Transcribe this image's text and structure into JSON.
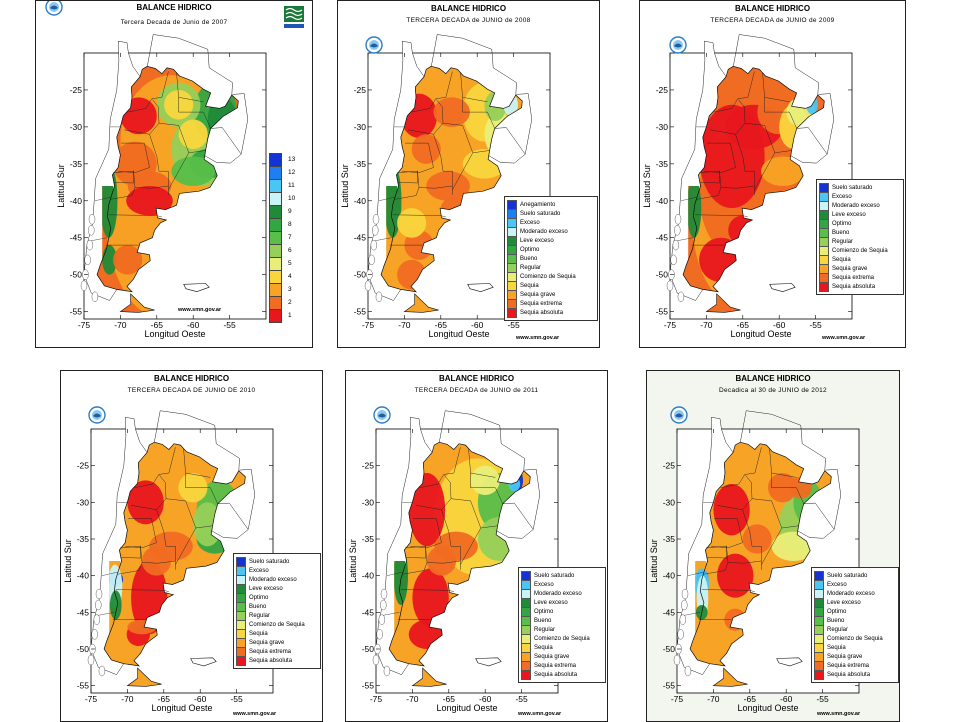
{
  "header_title": "BALANCE HIDRICO",
  "url": "www.smn.gov.ar",
  "axis": {
    "xlabel": "Longitud Oeste",
    "ylabel": "Latitud Sur",
    "xticks": [
      "-75",
      "-70",
      "-65",
      "-60",
      "-55"
    ],
    "yticks": [
      "-25",
      "-30",
      "-35",
      "-40",
      "-45",
      "-50",
      "-55"
    ]
  },
  "panels": [
    {
      "id": "2007",
      "subtitle": "Tercera Decada de Junio de 2007",
      "legend": "numeric"
    },
    {
      "id": "2008",
      "subtitle": "TERCERA DECADA de JUNIO de 2008",
      "legend": "text13"
    },
    {
      "id": "2009",
      "subtitle": "TERCERA DECADA de JUNIO de 2009",
      "legend": "text12"
    },
    {
      "id": "2010",
      "subtitle": "TERCERA DECADA DE JUNIO DE 2010",
      "legend": "text12"
    },
    {
      "id": "2011",
      "subtitle": "TERCERA DECADA de JUNIO de 2011",
      "legend": "text12"
    },
    {
      "id": "2012",
      "subtitle": "Decadica al 30 de JUNIO de 2012",
      "legend": "text12"
    }
  ],
  "numeric_legend": [
    {
      "label": "13",
      "color": "#1433d6"
    },
    {
      "label": "12",
      "color": "#1f7ff0"
    },
    {
      "label": "11",
      "color": "#49c6f3"
    },
    {
      "label": "10",
      "color": "#c9f3f7"
    },
    {
      "label": "9",
      "color": "#1f8a38"
    },
    {
      "label": "8",
      "color": "#33a543"
    },
    {
      "label": "7",
      "color": "#59be4a"
    },
    {
      "label": "6",
      "color": "#96d05a"
    },
    {
      "label": "5",
      "color": "#e9ee79"
    },
    {
      "label": "4",
      "color": "#f9d63d"
    },
    {
      "label": "3",
      "color": "#f7a325"
    },
    {
      "label": "2",
      "color": "#f06c22"
    },
    {
      "label": "1",
      "color": "#e8161d"
    }
  ],
  "legend_text13": [
    {
      "label": "Anegamiento",
      "color": "#1433d6"
    },
    {
      "label": "Suelo saturado",
      "color": "#1f7ff0"
    },
    {
      "label": "Exceso",
      "color": "#49c6f3"
    },
    {
      "label": "Moderado exceso",
      "color": "#c9f3f7"
    },
    {
      "label": "Leve exceso",
      "color": "#1f8a38"
    },
    {
      "label": "Optimo",
      "color": "#33a543"
    },
    {
      "label": "Bueno",
      "color": "#59be4a"
    },
    {
      "label": "Regular",
      "color": "#96d05a"
    },
    {
      "label": "Comienzo de Sequia",
      "color": "#e9ee79"
    },
    {
      "label": "Sequia",
      "color": "#f9d63d"
    },
    {
      "label": "Sequia grave",
      "color": "#f7a325"
    },
    {
      "label": "Sequia extrema",
      "color": "#f06c22"
    },
    {
      "label": "Sequia absoluta",
      "color": "#e8161d"
    }
  ],
  "legend_text12": [
    {
      "label": "Suelo saturado",
      "color": "#1433d6"
    },
    {
      "label": "Exceso",
      "color": "#49c6f3"
    },
    {
      "label": "Moderado exceso",
      "color": "#c9f3f7"
    },
    {
      "label": "Leve exceso",
      "color": "#1f8a38"
    },
    {
      "label": "Optimo",
      "color": "#33a543"
    },
    {
      "label": "Bueno",
      "color": "#59be4a"
    },
    {
      "label": "Regular",
      "color": "#96d05a"
    },
    {
      "label": "Comienzo de Sequia",
      "color": "#e9ee79"
    },
    {
      "label": "Sequia",
      "color": "#f9d63d"
    },
    {
      "label": "Sequia grave",
      "color": "#f7a325"
    },
    {
      "label": "Sequia extrema",
      "color": "#f06c22"
    },
    {
      "label": "Sequia absoluta",
      "color": "#e8161d"
    }
  ]
}
